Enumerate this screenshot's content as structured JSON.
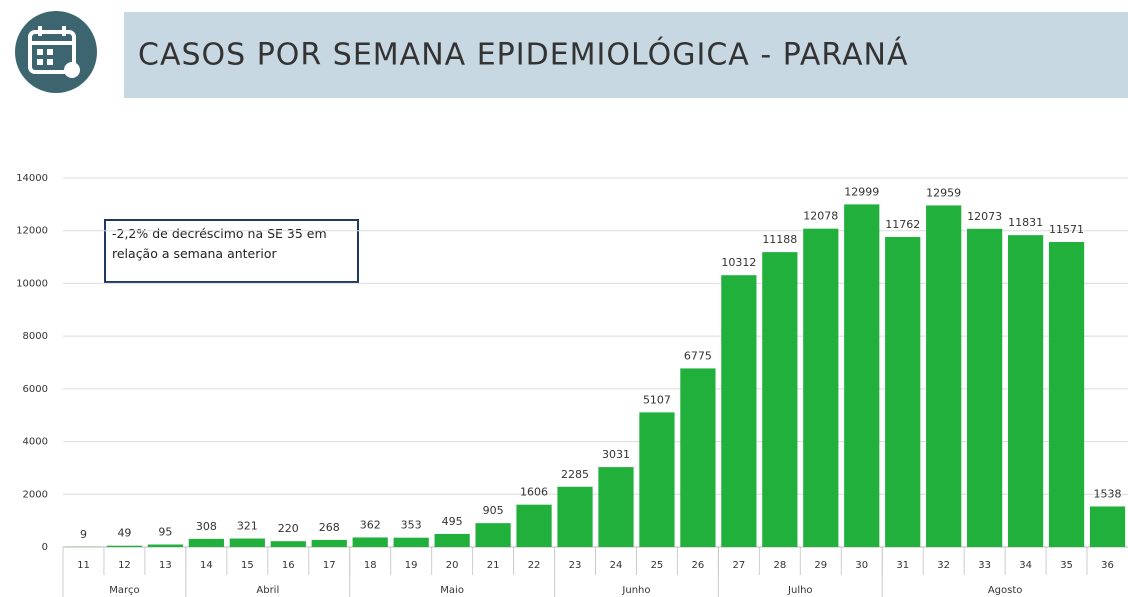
{
  "chart_data": {
    "type": "bar",
    "title": "CASOS POR SEMANA EPIDEMIOLÓGICA - PARANÁ",
    "annotation": "-2,2% de decréscimo na SE 35 em relação a semana anterior",
    "categories": [
      "11",
      "12",
      "13",
      "14",
      "15",
      "16",
      "17",
      "18",
      "19",
      "20",
      "21",
      "22",
      "23",
      "24",
      "25",
      "26",
      "27",
      "28",
      "29",
      "30",
      "31",
      "32",
      "33",
      "34",
      "35",
      "36"
    ],
    "months": [
      "Março",
      null,
      null,
      "Abril",
      null,
      null,
      null,
      "Maio",
      null,
      null,
      null,
      null,
      "Junho",
      null,
      null,
      null,
      "Julho",
      null,
      null,
      null,
      "Agosto",
      null,
      null,
      null,
      null,
      null
    ],
    "values": [
      9,
      49,
      95,
      308,
      321,
      220,
      268,
      362,
      353,
      495,
      905,
      1606,
      2285,
      3031,
      5107,
      6775,
      10312,
      11188,
      12078,
      12999,
      11762,
      12959,
      12073,
      11831,
      11571,
      1538
    ],
    "color": "#22b03c",
    "ylim": [
      0,
      14000
    ],
    "yticks": [
      0,
      2000,
      4000,
      6000,
      8000,
      10000,
      12000,
      14000
    ],
    "grid": true
  }
}
